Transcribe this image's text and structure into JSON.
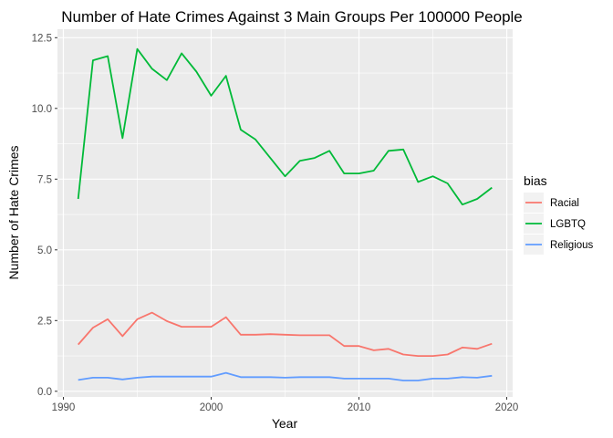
{
  "chart_data": {
    "type": "line",
    "title": "Number of Hate Crimes Against 3 Main Groups Per 100000 People",
    "xlabel": "Year",
    "ylabel": "Number of Hate Crimes",
    "xlim": [
      1989.6,
      2020.4
    ],
    "ylim": [
      -0.2,
      12.8
    ],
    "x_ticks": [
      1990,
      2000,
      2010,
      2020
    ],
    "y_ticks": [
      0.0,
      2.5,
      5.0,
      7.5,
      10.0,
      12.5
    ],
    "y_tick_labels": [
      "0.0",
      "2.5",
      "5.0",
      "7.5",
      "10.0",
      "12.5"
    ],
    "x": [
      1991,
      1992,
      1993,
      1994,
      1995,
      1996,
      1997,
      1998,
      1999,
      2000,
      2001,
      2002,
      2003,
      2004,
      2005,
      2006,
      2007,
      2008,
      2009,
      2010,
      2011,
      2012,
      2013,
      2014,
      2015,
      2016,
      2017,
      2018,
      2019
    ],
    "grid": true,
    "legend_position": "right",
    "legend_title": "bias",
    "series": [
      {
        "name": "Racial",
        "color": "#F8766D",
        "values": [
          1.65,
          2.25,
          2.55,
          1.95,
          2.55,
          2.78,
          2.48,
          2.28,
          2.28,
          2.28,
          2.62,
          2.0,
          2.0,
          2.02,
          2.0,
          1.98,
          1.98,
          1.98,
          1.6,
          1.6,
          1.45,
          1.5,
          1.3,
          1.25,
          1.25,
          1.3,
          1.55,
          1.5,
          1.68
        ]
      },
      {
        "name": "LGBTQ",
        "color": "#00BA38",
        "values": [
          6.8,
          11.7,
          11.85,
          8.95,
          12.1,
          11.4,
          11.0,
          11.95,
          11.3,
          10.45,
          11.15,
          9.25,
          8.9,
          8.25,
          7.6,
          8.15,
          8.25,
          8.5,
          7.7,
          7.7,
          7.8,
          8.5,
          8.55,
          7.4,
          7.6,
          7.35,
          6.6,
          6.8,
          7.2
        ]
      },
      {
        "name": "Religious",
        "color": "#619CFF",
        "values": [
          0.4,
          0.48,
          0.48,
          0.42,
          0.48,
          0.52,
          0.52,
          0.52,
          0.52,
          0.52,
          0.65,
          0.5,
          0.5,
          0.5,
          0.48,
          0.5,
          0.5,
          0.5,
          0.45,
          0.45,
          0.45,
          0.45,
          0.38,
          0.38,
          0.45,
          0.45,
          0.5,
          0.48,
          0.55
        ]
      }
    ]
  }
}
